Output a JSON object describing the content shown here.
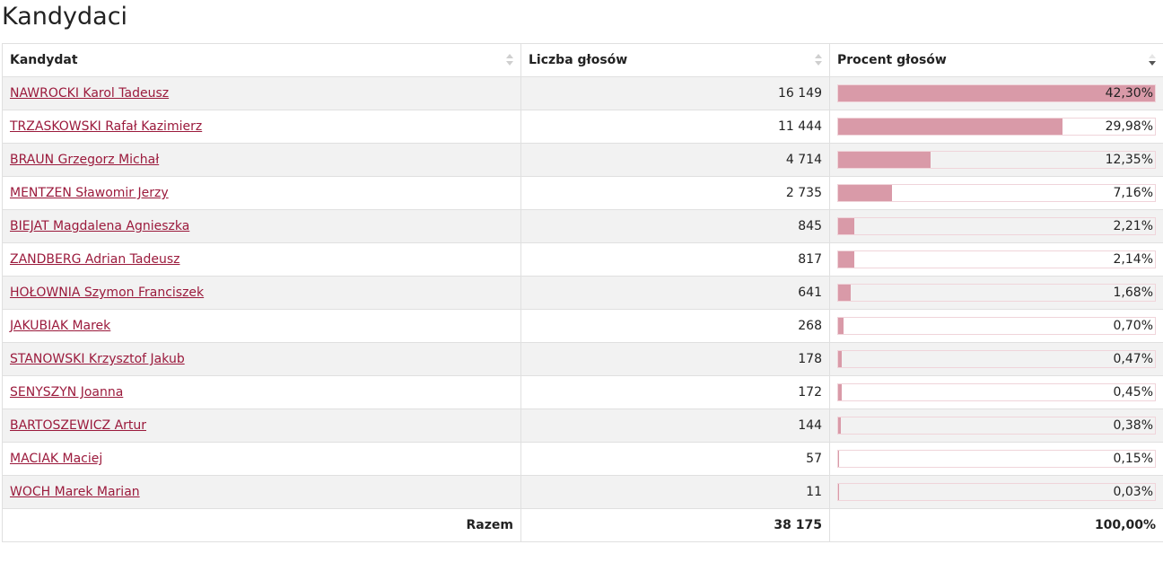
{
  "page_title": "Kandydaci",
  "columns": {
    "candidate": "Kandydat",
    "votes": "Liczba głosów",
    "percent": "Procent głosów"
  },
  "sort": {
    "column": "percent",
    "direction": "descending"
  },
  "bar_color": "#d99aa8",
  "link_color": "#9b1a3c",
  "rows": [
    {
      "name": "NAWROCKI Karol Tadeusz",
      "votes": "16 149",
      "percent_label": "42,30%",
      "share": 1.0
    },
    {
      "name": "TRZASKOWSKI Rafał Kazimierz",
      "votes": "11 444",
      "percent_label": "29,98%",
      "share": 0.7087
    },
    {
      "name": "BRAUN Grzegorz Michał",
      "votes": "4 714",
      "percent_label": "12,35%",
      "share": 0.2919
    },
    {
      "name": "MENTZEN Sławomir Jerzy",
      "votes": "2 735",
      "percent_label": "7,16%",
      "share": 0.1693
    },
    {
      "name": "BIEJAT Magdalena Agnieszka",
      "votes": "845",
      "percent_label": "2,21%",
      "share": 0.0522
    },
    {
      "name": "ZANDBERG Adrian Tadeusz",
      "votes": "817",
      "percent_label": "2,14%",
      "share": 0.0506
    },
    {
      "name": "HOŁOWNIA Szymon Franciszek",
      "votes": "641",
      "percent_label": "1,68%",
      "share": 0.0397
    },
    {
      "name": "JAKUBIAK Marek",
      "votes": "268",
      "percent_label": "0,70%",
      "share": 0.0165
    },
    {
      "name": "STANOWSKI Krzysztof Jakub",
      "votes": "178",
      "percent_label": "0,47%",
      "share": 0.0111
    },
    {
      "name": "SENYSZYN Joanna",
      "votes": "172",
      "percent_label": "0,45%",
      "share": 0.0106
    },
    {
      "name": "BARTOSZEWICZ Artur",
      "votes": "144",
      "percent_label": "0,38%",
      "share": 0.009
    },
    {
      "name": "MACIAK Maciej",
      "votes": "57",
      "percent_label": "0,15%",
      "share": 0.0035
    },
    {
      "name": "WOCH Marek Marian",
      "votes": "11",
      "percent_label": "0,03%",
      "share": 0.0007
    }
  ],
  "total": {
    "label": "Razem",
    "votes": "38 175",
    "percent_label": "100,00%"
  }
}
